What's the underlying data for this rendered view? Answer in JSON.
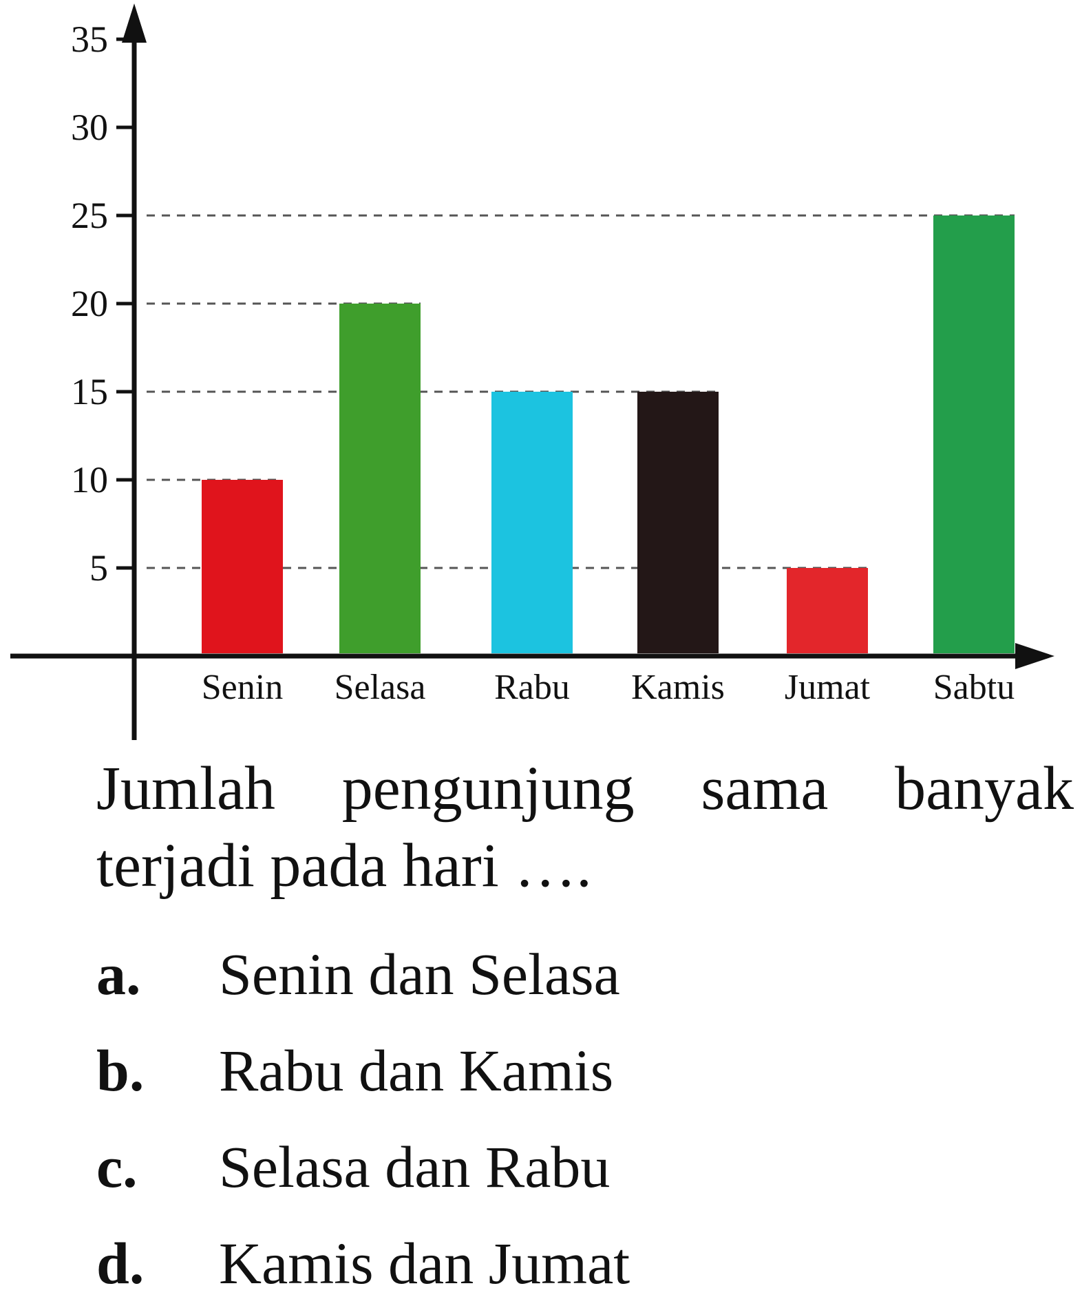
{
  "chart_data": {
    "type": "bar",
    "categories": [
      "Senin",
      "Selasa",
      "Rabu",
      "Kamis",
      "Jumat",
      "Sabtu"
    ],
    "values": [
      10,
      20,
      15,
      15,
      5,
      25
    ],
    "colors": [
      "#e0141c",
      "#3f9e2c",
      "#1cc3e0",
      "#231717",
      "#e3262b",
      "#239e4b"
    ],
    "y_ticks": [
      "5",
      "10",
      "15",
      "20",
      "25",
      "30",
      "35"
    ],
    "ylim": [
      0,
      35
    ],
    "guide_lines_dashed": true,
    "title": "",
    "xlabel": "",
    "ylabel": ""
  },
  "question": {
    "line1_words": [
      "Jumlah",
      "pengunjung",
      "sama",
      "banyak"
    ],
    "line2": "terjadi pada hari …."
  },
  "options": [
    {
      "letter": "a.",
      "text": "Senin dan Selasa"
    },
    {
      "letter": "b.",
      "text": "Rabu dan Kamis"
    },
    {
      "letter": "c.",
      "text": "Selasa dan Rabu"
    },
    {
      "letter": "d.",
      "text": "Kamis dan Jumat"
    }
  ]
}
